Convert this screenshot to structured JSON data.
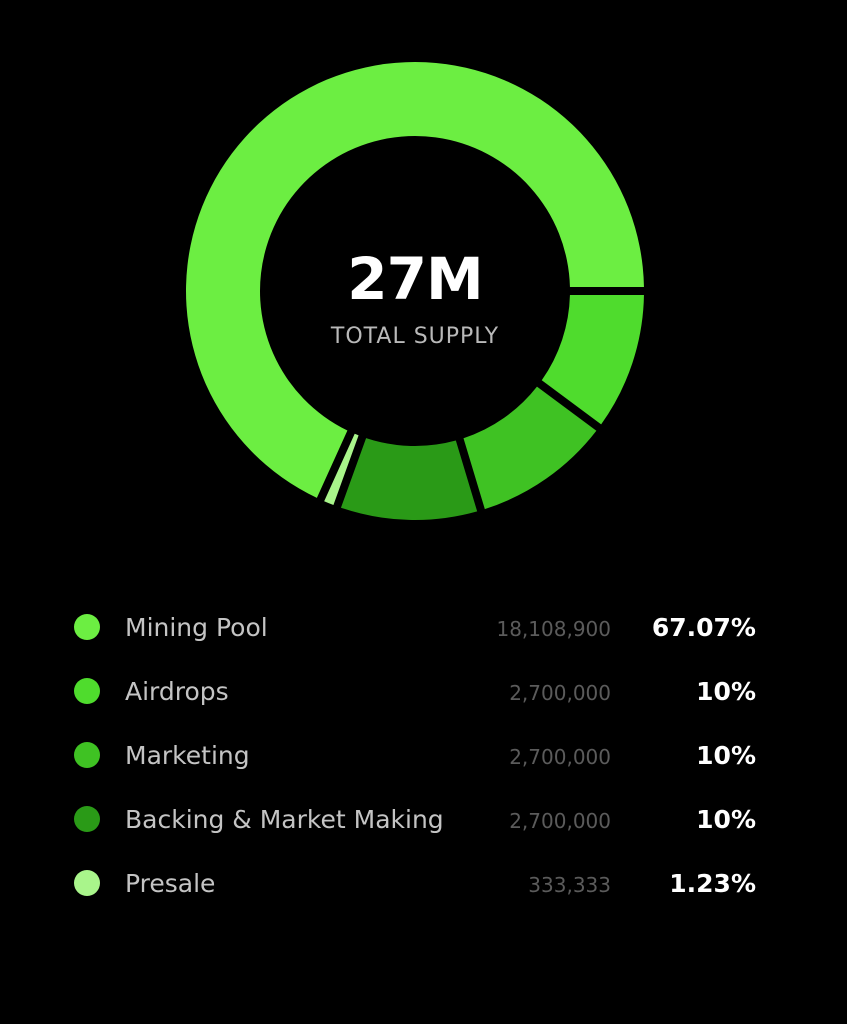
{
  "chart_data": {
    "type": "pie",
    "center_value": "27M",
    "center_label": "TOTAL SUPPLY",
    "categories": [
      "Mining Pool",
      "Airdrops",
      "Marketing",
      "Backing & Market Making",
      "Presale"
    ],
    "amounts": [
      "18,108,900",
      "2,700,000",
      "2,700,000",
      "2,700,000",
      "333,333"
    ],
    "percent_labels": [
      "67.07%",
      "10%",
      "10%",
      "10%",
      "1.23%"
    ],
    "values": [
      67.07,
      10,
      10,
      10,
      1.23
    ],
    "colors": [
      "#6cee42",
      "#4fdc2d",
      "#3fc223",
      "#2a9a17",
      "#a9f58b"
    ]
  }
}
